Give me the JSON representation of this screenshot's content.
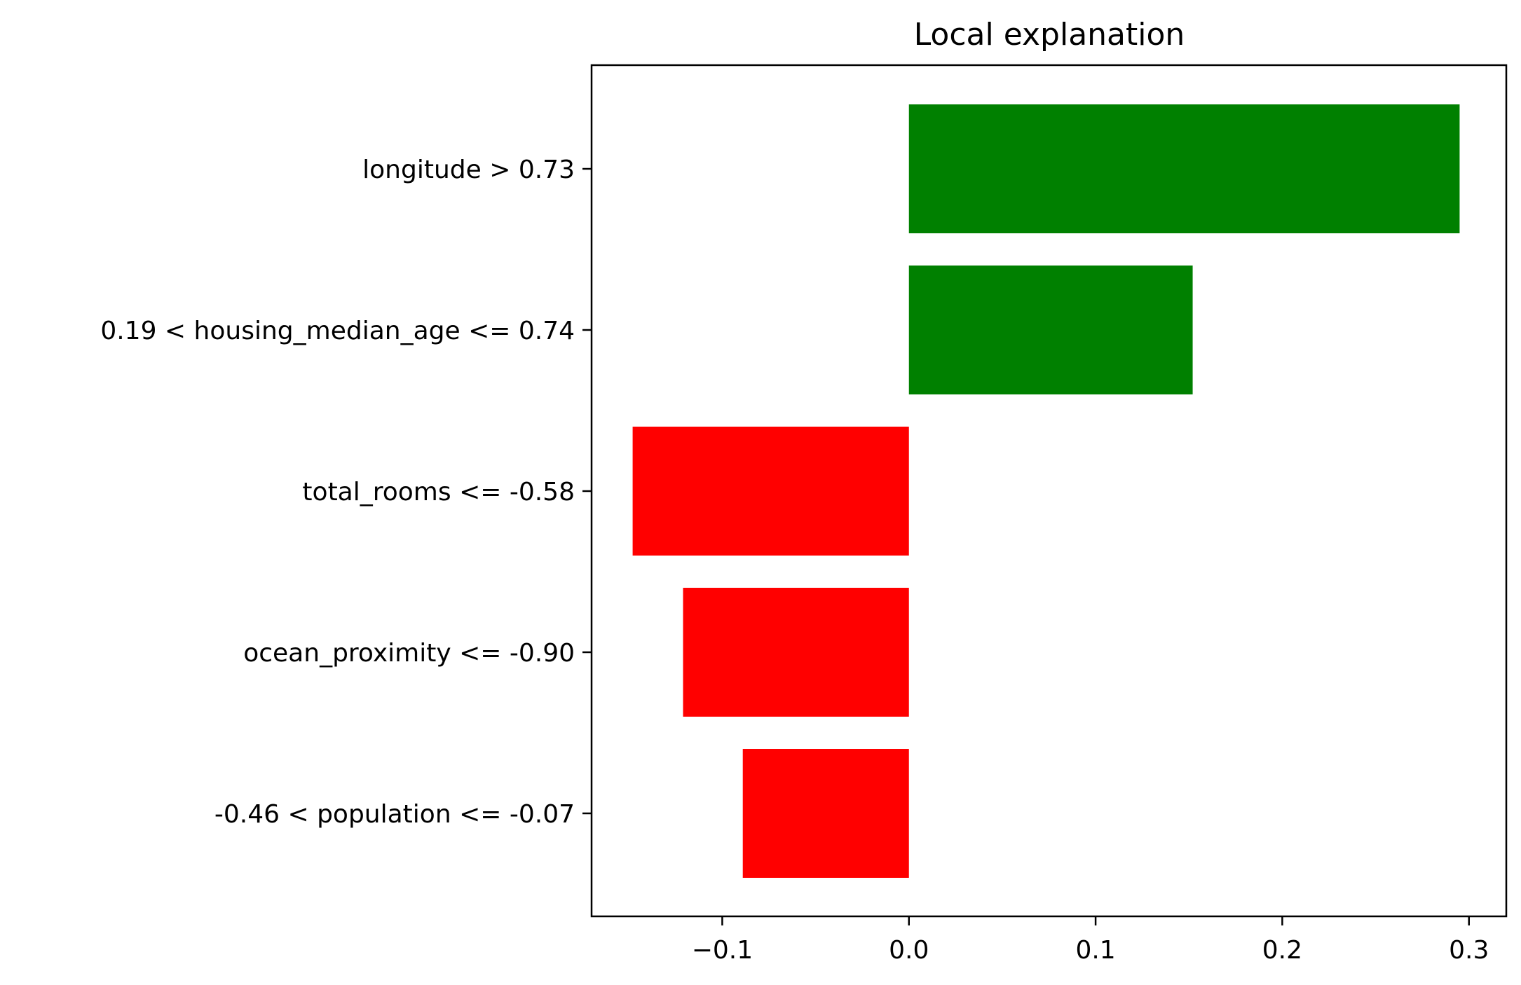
{
  "chart_data": {
    "type": "bar",
    "orientation": "horizontal",
    "title": "Local explanation",
    "xlabel": "",
    "ylabel": "",
    "categories": [
      "longitude > 0.73",
      "0.19 < housing_median_age <= 0.74",
      "total_rooms <= -0.58",
      "ocean_proximity <= -0.90",
      "-0.46 < population <= -0.07"
    ],
    "values": [
      0.295,
      0.152,
      -0.148,
      -0.121,
      -0.089
    ],
    "xlim": [
      -0.17,
      0.32
    ],
    "xticks": [
      -0.1,
      0.0,
      0.1,
      0.2,
      0.3
    ],
    "xtick_labels": [
      "−0.1",
      "0.0",
      "0.1",
      "0.2",
      "0.3"
    ],
    "grid": false,
    "colors": {
      "positive": "#008000",
      "negative": "#ff0000"
    }
  }
}
